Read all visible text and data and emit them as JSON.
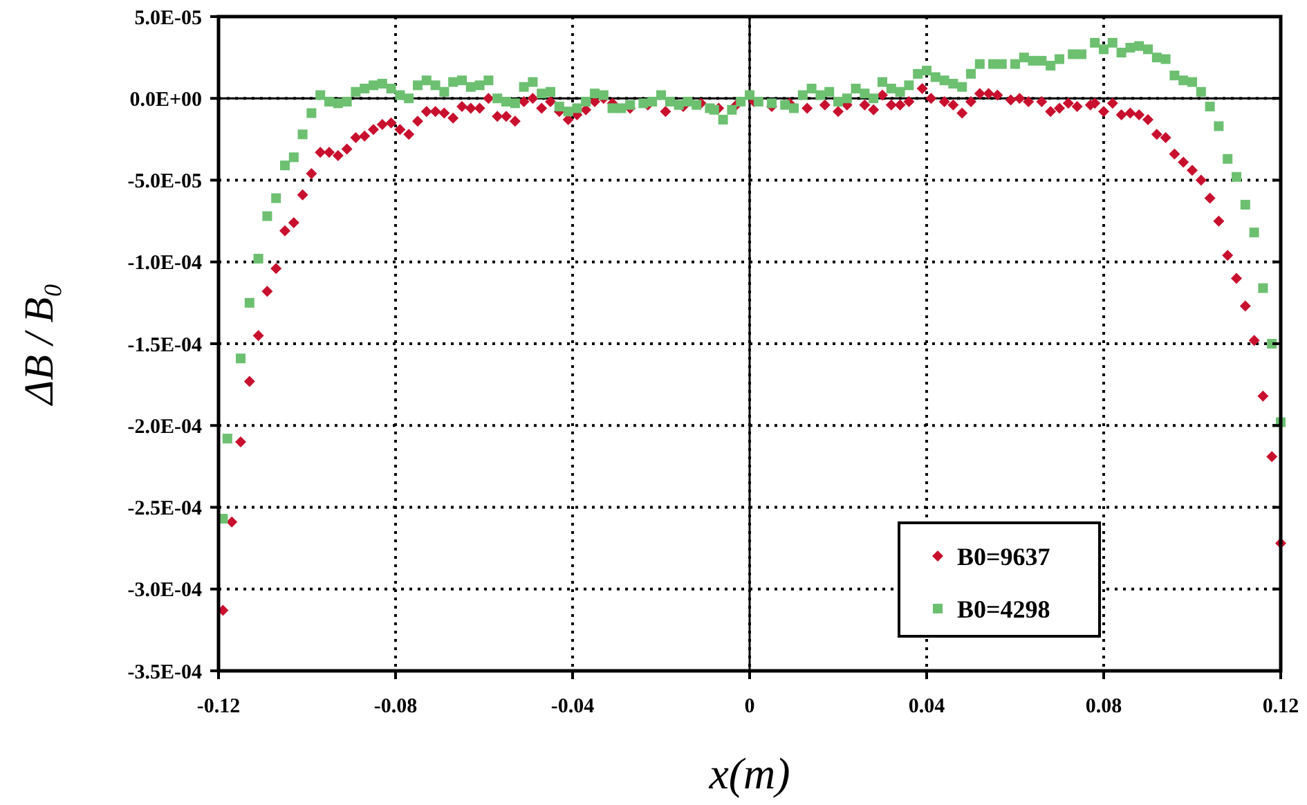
{
  "chart_data": {
    "type": "scatter",
    "xlabel": "x(m)",
    "ylabel": "ΔB / B₀",
    "xlim": [
      -0.12,
      0.12
    ],
    "xticks": [
      -0.12,
      -0.08,
      -0.04,
      0,
      0.04,
      0.08,
      0.12
    ],
    "ylim": [
      -0.00035,
      5e-05
    ],
    "yticks": [
      {
        "value": 5e-05,
        "label": "5.0E-05"
      },
      {
        "value": 0,
        "label": "0.0E+00"
      },
      {
        "value": -5e-05,
        "label": "-5.0E-05"
      },
      {
        "value": -0.0001,
        "label": "-1.0E-04"
      },
      {
        "value": -0.00015,
        "label": "-1.5E-04"
      },
      {
        "value": -0.0002,
        "label": "-2.0E-04"
      },
      {
        "value": -0.00025,
        "label": "-2.5E-04"
      },
      {
        "value": -0.0003,
        "label": "-3.0E-04"
      },
      {
        "value": -0.00035,
        "label": "-3.5E-04"
      }
    ],
    "grid": true,
    "legend": "bottom right",
    "series": [
      {
        "name": "B0=9637",
        "color": "#c8102e",
        "marker": "diamond",
        "x": [
          -0.119,
          -0.117,
          -0.115,
          -0.113,
          -0.111,
          -0.109,
          -0.107,
          -0.105,
          -0.103,
          -0.101,
          -0.099,
          -0.097,
          -0.095,
          -0.093,
          -0.091,
          -0.089,
          -0.087,
          -0.085,
          -0.083,
          -0.081,
          -0.079,
          -0.077,
          -0.075,
          -0.073,
          -0.071,
          -0.069,
          -0.067,
          -0.065,
          -0.063,
          -0.061,
          -0.059,
          -0.057,
          -0.055,
          -0.053,
          -0.051,
          -0.049,
          -0.047,
          -0.045,
          -0.043,
          -0.041,
          -0.039,
          -0.037,
          -0.035,
          -0.033,
          -0.031,
          -0.027,
          -0.023,
          -0.019,
          -0.015,
          -0.011,
          -0.007,
          -0.003,
          0.001,
          0.005,
          0.009,
          0.013,
          0.017,
          0.02,
          0.022,
          0.026,
          0.028,
          0.03,
          0.032,
          0.034,
          0.036,
          0.039,
          0.041,
          0.044,
          0.046,
          0.048,
          0.05,
          0.052,
          0.054,
          0.056,
          0.059,
          0.061,
          0.063,
          0.066,
          0.068,
          0.07,
          0.072,
          0.074,
          0.077,
          0.078,
          0.08,
          0.082,
          0.084,
          0.086,
          0.088,
          0.09,
          0.092,
          0.094,
          0.096,
          0.098,
          0.1,
          0.102,
          0.104,
          0.106,
          0.108,
          0.11,
          0.112,
          0.114,
          0.116,
          0.118,
          0.12
        ],
        "values": [
          -0.000313,
          -0.000259,
          -0.00021,
          -0.000173,
          -0.000145,
          -0.000118,
          -0.000104,
          -8.1e-05,
          -7.6e-05,
          -5.9e-05,
          -4.6e-05,
          -3.3e-05,
          -3.3e-05,
          -3.5e-05,
          -3.1e-05,
          -2.4e-05,
          -2.3e-05,
          -1.9e-05,
          -1.6e-05,
          -1.5e-05,
          -1.9e-05,
          -2.2e-05,
          -1.4e-05,
          -8e-06,
          -8e-06,
          -9e-06,
          -1.2e-05,
          -5e-06,
          -6e-06,
          -6e-06,
          0,
          -1.1e-05,
          -1.1e-05,
          -1.4e-05,
          -2e-06,
          0,
          -6e-06,
          -2e-06,
          -8e-06,
          -1.3e-05,
          -1e-05,
          -7e-06,
          -2e-06,
          0,
          -3e-06,
          -6e-06,
          -4e-06,
          -8e-06,
          -5e-06,
          -3e-06,
          -6e-06,
          -4e-06,
          -2e-06,
          -5e-06,
          -3e-06,
          -6e-06,
          -4e-06,
          -8e-06,
          -4e-06,
          -4e-06,
          -7e-06,
          2e-06,
          -4e-06,
          -4e-06,
          -2e-06,
          6e-06,
          0,
          -2e-06,
          -4e-06,
          -9e-06,
          -2e-06,
          3e-06,
          3e-06,
          2e-06,
          -1e-06,
          0,
          -2e-06,
          -2e-06,
          -8e-06,
          -6e-06,
          -3e-06,
          -5e-06,
          -4e-06,
          -3e-06,
          -8e-06,
          -3e-06,
          -1e-05,
          -9e-06,
          -1e-05,
          -1.3e-05,
          -2.2e-05,
          -2.4e-05,
          -3.4e-05,
          -3.9e-05,
          -4.4e-05,
          -5e-05,
          -6.1e-05,
          -7.5e-05,
          -9.6e-05,
          -0.00011,
          -0.000127,
          -0.000148,
          -0.000182,
          -0.000219,
          -0.000272
        ]
      },
      {
        "name": "B0=4298",
        "color": "#6cc070",
        "marker": "square",
        "x": [
          -0.119,
          -0.118,
          -0.115,
          -0.113,
          -0.111,
          -0.109,
          -0.107,
          -0.105,
          -0.103,
          -0.101,
          -0.099,
          -0.097,
          -0.095,
          -0.093,
          -0.091,
          -0.089,
          -0.087,
          -0.085,
          -0.083,
          -0.081,
          -0.079,
          -0.077,
          -0.075,
          -0.073,
          -0.071,
          -0.069,
          -0.067,
          -0.065,
          -0.063,
          -0.061,
          -0.059,
          -0.057,
          -0.055,
          -0.053,
          -0.051,
          -0.049,
          -0.047,
          -0.045,
          -0.043,
          -0.041,
          -0.039,
          -0.037,
          -0.035,
          -0.033,
          -0.031,
          -0.029,
          -0.027,
          -0.024,
          -0.022,
          -0.02,
          -0.018,
          -0.016,
          -0.014,
          -0.012,
          -0.009,
          -0.008,
          -0.006,
          -0.004,
          -0.002,
          0,
          0.002,
          0.005,
          0.008,
          0.01,
          0.012,
          0.014,
          0.016,
          0.018,
          0.02,
          0.022,
          0.024,
          0.026,
          0.028,
          0.03,
          0.032,
          0.034,
          0.036,
          0.038,
          0.04,
          0.042,
          0.044,
          0.046,
          0.048,
          0.05,
          0.052,
          0.055,
          0.057,
          0.06,
          0.062,
          0.064,
          0.066,
          0.068,
          0.07,
          0.073,
          0.075,
          0.078,
          0.08,
          0.082,
          0.084,
          0.086,
          0.088,
          0.09,
          0.092,
          0.094,
          0.096,
          0.098,
          0.1,
          0.102,
          0.104,
          0.106,
          0.108,
          0.11,
          0.112,
          0.114,
          0.116,
          0.118,
          0.12
        ],
        "values": [
          -0.000257,
          -0.000208,
          -0.000159,
          -0.000125,
          -9.8e-05,
          -7.2e-05,
          -6.1e-05,
          -4.1e-05,
          -3.6e-05,
          -2.2e-05,
          -9e-06,
          2e-06,
          -2e-06,
          -3e-06,
          -2e-06,
          4e-06,
          6e-06,
          8e-06,
          9e-06,
          6e-06,
          2e-06,
          0,
          8e-06,
          1.1e-05,
          8e-06,
          4e-06,
          1e-05,
          1.1e-05,
          7e-06,
          8e-06,
          1.1e-05,
          0,
          -2e-06,
          -3e-06,
          7e-06,
          1e-05,
          3e-06,
          4e-06,
          -5e-06,
          -8e-06,
          -6e-06,
          -2e-06,
          3e-06,
          2e-06,
          -6e-06,
          -6e-06,
          -4e-06,
          -3e-06,
          -2e-06,
          2e-06,
          -2e-06,
          -4e-06,
          -2e-06,
          -4e-06,
          -6e-06,
          -7e-06,
          -1.3e-05,
          -7e-06,
          -2e-06,
          2e-06,
          -2e-06,
          -3e-06,
          -4e-06,
          -6e-06,
          2e-06,
          6e-06,
          2e-06,
          4e-06,
          -2e-06,
          0,
          6e-06,
          3e-06,
          0,
          1e-05,
          6e-06,
          4e-06,
          8e-06,
          1.5e-05,
          1.7e-05,
          1.3e-05,
          1.1e-05,
          9e-06,
          7e-06,
          1.5e-05,
          2.1e-05,
          2.1e-05,
          2.1e-05,
          2.1e-05,
          2.5e-05,
          2.3e-05,
          2.3e-05,
          2e-05,
          2.4e-05,
          2.7e-05,
          2.7e-05,
          3.4e-05,
          3e-05,
          3.4e-05,
          2.8e-05,
          3.1e-05,
          3.2e-05,
          3e-05,
          2.5e-05,
          2.4e-05,
          1.4e-05,
          1.1e-05,
          1e-05,
          4e-06,
          -5e-06,
          -1.7e-05,
          -3.7e-05,
          -4.8e-05,
          -6.5e-05,
          -8.2e-05,
          -0.000116,
          -0.00015,
          -0.000198
        ]
      }
    ]
  }
}
